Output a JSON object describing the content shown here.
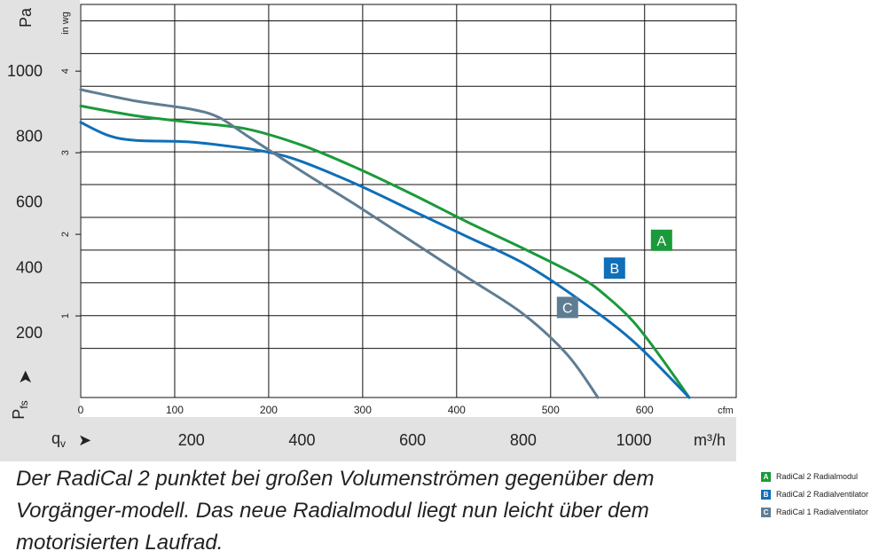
{
  "chart_data": {
    "type": "line",
    "xlabel": "q",
    "xlabel_sub": "v",
    "xunit": "m³/h",
    "x_ticks": [
      200,
      400,
      600,
      800,
      1000
    ],
    "xlim": [
      0,
      1185
    ],
    "x2unit": "cfm",
    "x2_ticks": [
      0,
      100,
      200,
      300,
      400,
      500,
      600
    ],
    "ylabel": "P",
    "ylabel_sub": "fs",
    "yunit": "Pa",
    "y_ticks": [
      200,
      400,
      600,
      800,
      1000
    ],
    "ylim": [
      0,
      1200
    ],
    "y2unit": "in wg",
    "y2_ticks": [
      1,
      2,
      3,
      4
    ],
    "grid": true,
    "series": [
      {
        "label": "A",
        "color": "#1a9a3a",
        "x": [
          0,
          100,
          200,
          300,
          400,
          500,
          600,
          700,
          800,
          900,
          950,
          1000,
          1050,
          1100
        ],
        "y": [
          890,
          860,
          840,
          820,
          770,
          700,
          620,
          535,
          455,
          370,
          310,
          230,
          120,
          0
        ]
      },
      {
        "label": "B",
        "color": "#0f6fb8",
        "x": [
          0,
          50,
          100,
          200,
          300,
          350,
          400,
          500,
          600,
          700,
          800,
          900,
          1000,
          1100
        ],
        "y": [
          840,
          800,
          785,
          780,
          760,
          745,
          720,
          650,
          570,
          490,
          410,
          300,
          170,
          0
        ]
      },
      {
        "label": "C",
        "color": "#5f7d92",
        "x": [
          0,
          100,
          200,
          250,
          300,
          400,
          500,
          600,
          700,
          800,
          880,
          935
        ],
        "y": [
          940,
          905,
          880,
          855,
          800,
          690,
          585,
          475,
          365,
          255,
          130,
          0
        ]
      }
    ]
  },
  "caption": "Der RadiCal 2 punktet bei großen Volumenströmen gegenüber dem Vorgänger-modell. Das neue Radialmodul liegt nun leicht über dem motorisierten Laufrad.",
  "legend": [
    {
      "letter": "A",
      "label": "RadiCal 2 Radialmodul",
      "color": "#1a9a3a"
    },
    {
      "letter": "B",
      "label": "RadiCal 2 Radialventilator",
      "color": "#0f6fb8"
    },
    {
      "letter": "C",
      "label": "RadiCal 1 Radialventilator",
      "color": "#5f7d92"
    }
  ]
}
